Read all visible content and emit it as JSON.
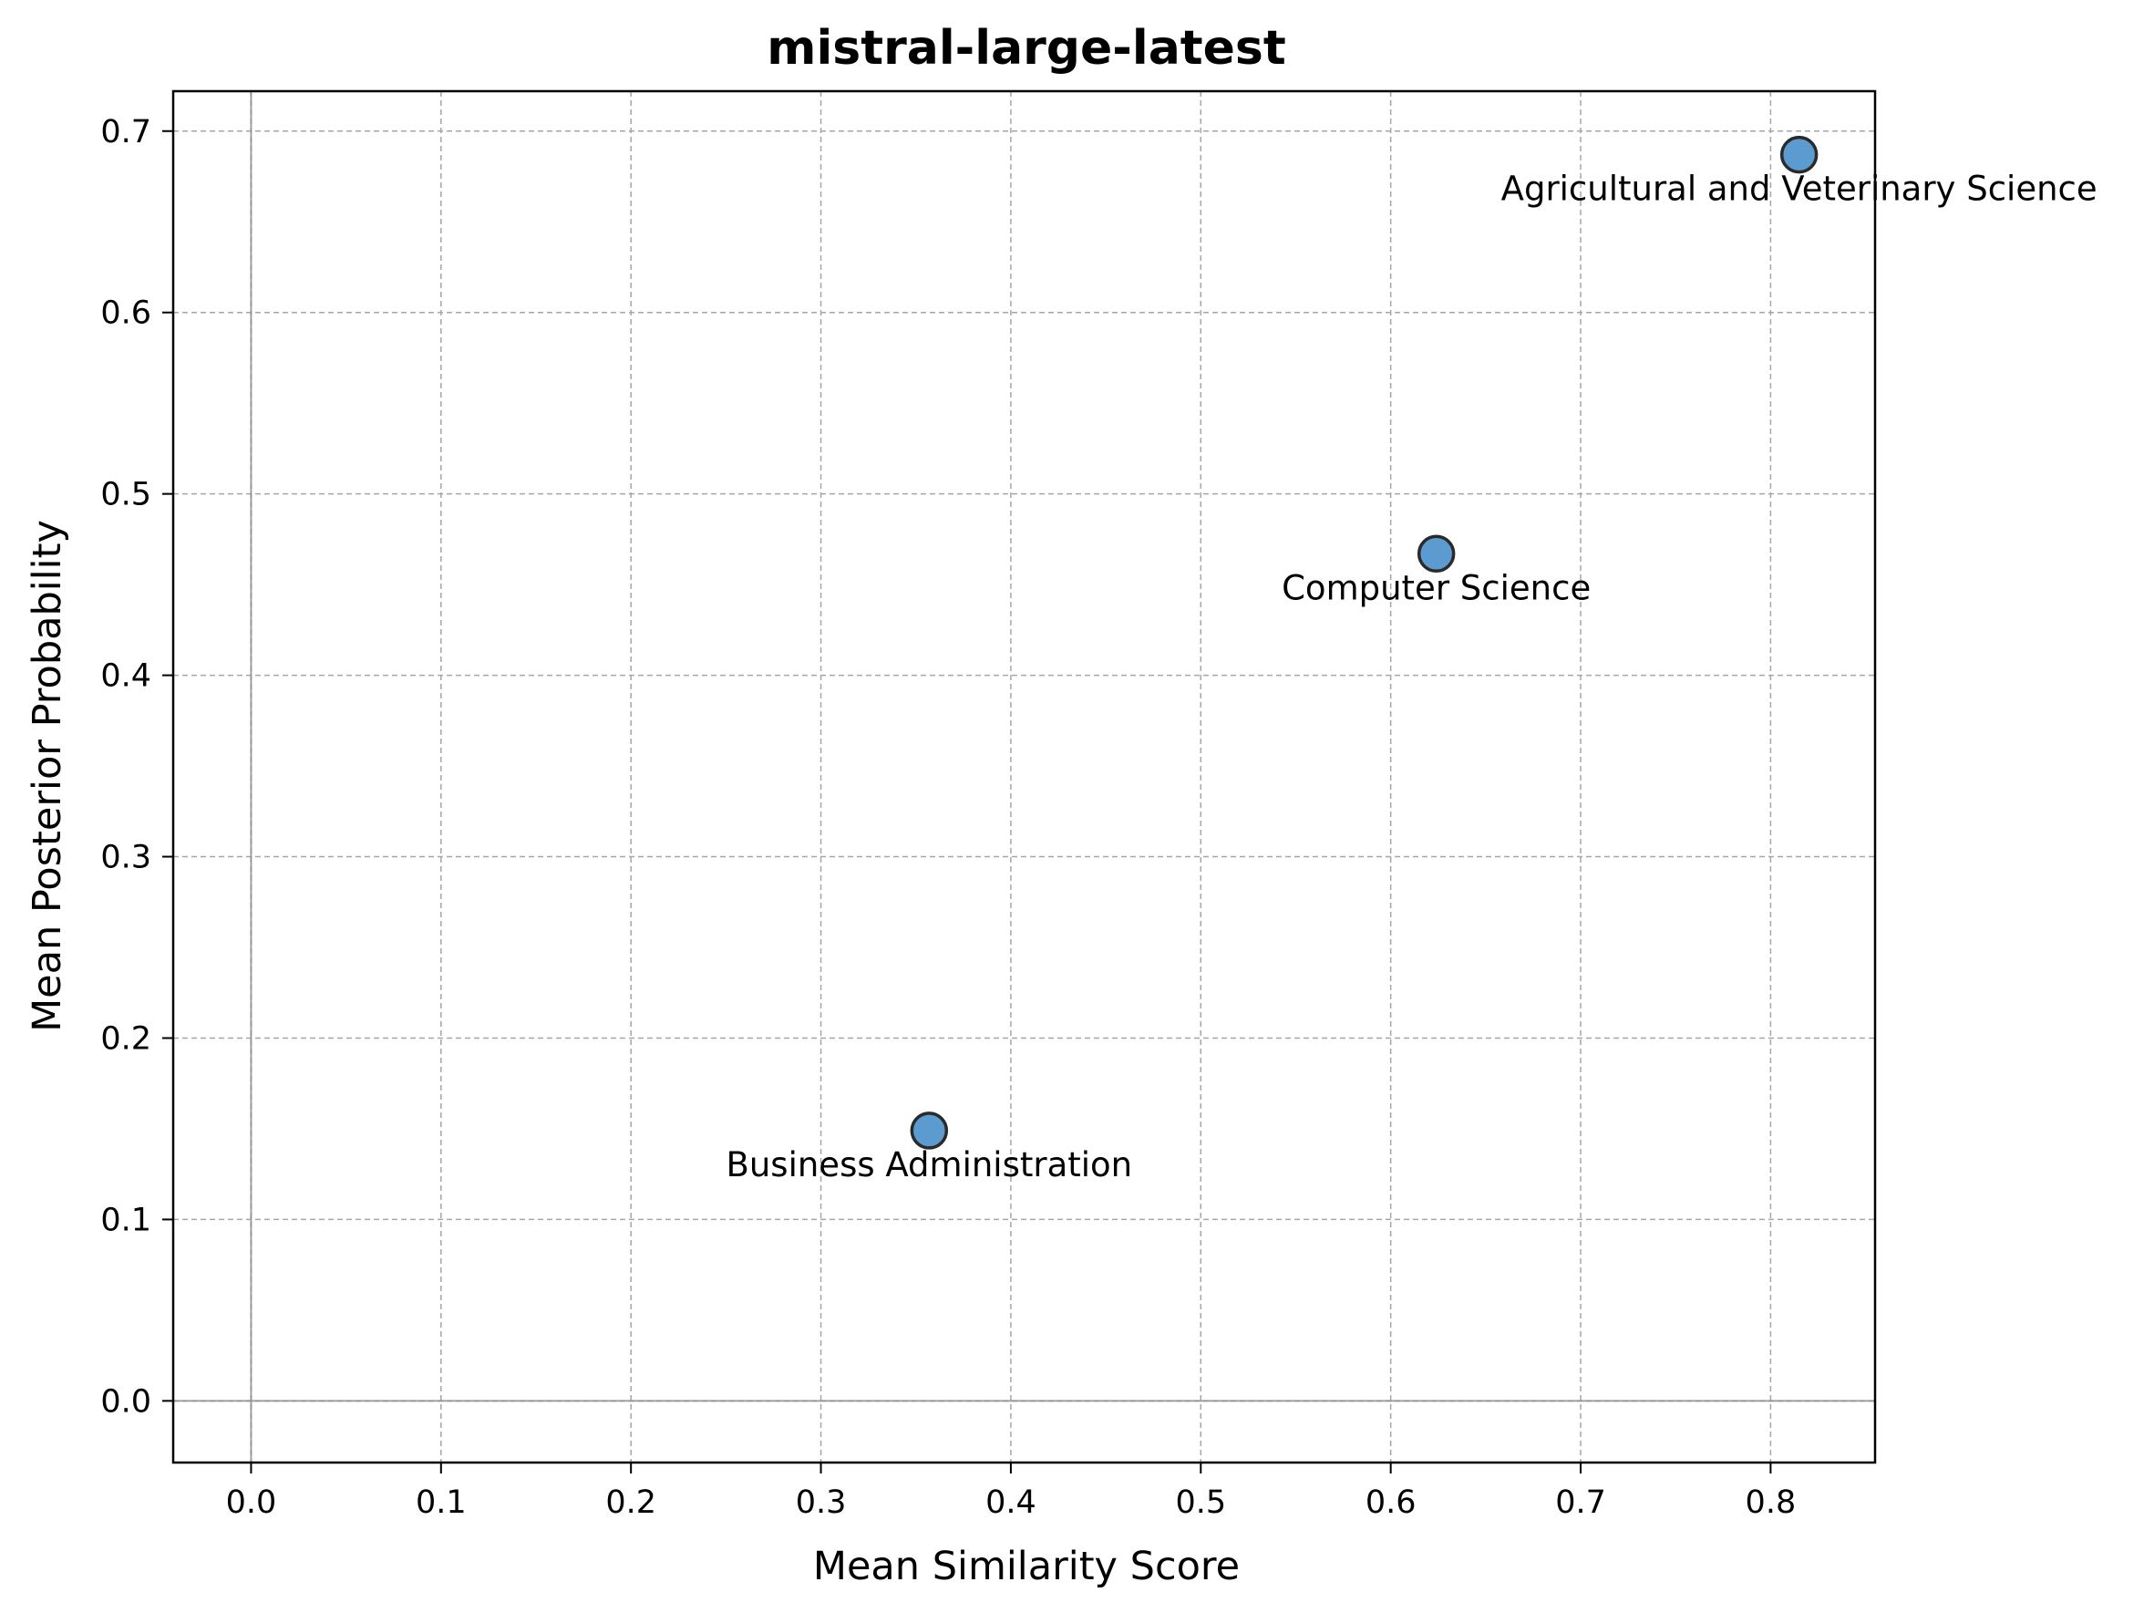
{
  "colors": {
    "point_fill": "#5b9bd0",
    "point_edge": "#2a2a2a",
    "grid": "#a6a6a6",
    "zero_line": "#8c8c8c",
    "axes": "#000000"
  },
  "chart_data": {
    "type": "scatter",
    "title": "mistral-large-latest",
    "xlabel": "Mean Similarity Score",
    "ylabel": "Mean Posterior Probability",
    "xlim": [
      -0.041,
      0.855
    ],
    "ylim": [
      -0.034,
      0.722
    ],
    "xticks": [
      "0.0",
      "0.1",
      "0.2",
      "0.3",
      "0.4",
      "0.5",
      "0.6",
      "0.7",
      "0.8"
    ],
    "yticks": [
      "0.0",
      "0.1",
      "0.2",
      "0.3",
      "0.4",
      "0.5",
      "0.6",
      "0.7"
    ],
    "grid": true,
    "points": [
      {
        "label": "Agricultural and Veterinary Science",
        "x": 0.815,
        "y": 0.687
      },
      {
        "label": "Computer Science",
        "x": 0.624,
        "y": 0.467
      },
      {
        "label": "Business Administration",
        "x": 0.357,
        "y": 0.149
      }
    ]
  }
}
